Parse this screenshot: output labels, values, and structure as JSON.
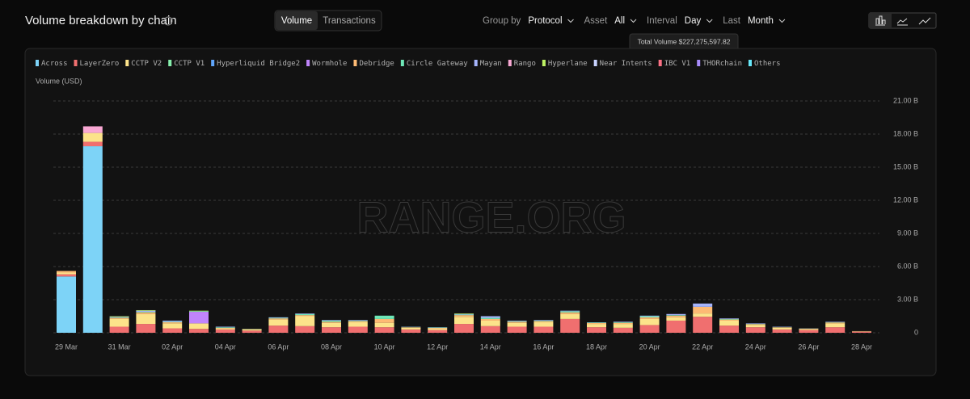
{
  "ui": {
    "title": "Volume breakdown by chain",
    "tabs": [
      "Volume",
      "Transactions"
    ],
    "filters": [
      {
        "label": "Group by",
        "value": "Protocol"
      },
      {
        "label": "Asset",
        "value": "All"
      },
      {
        "label": "Interval",
        "value": "Day"
      },
      {
        "label": "Last",
        "value": "Month"
      }
    ],
    "tooltip": "Total Volume $227,275,597.82",
    "watermark": "RANGE.ORG"
  },
  "chart_data": {
    "type": "stacked_bar",
    "ylabel": "Volume (USD)",
    "categories": [
      "29 Mar",
      null,
      "31 Mar",
      null,
      "02 Apr",
      null,
      "04 Apr",
      null,
      "06 Apr",
      null,
      "08 Apr",
      null,
      "10 Apr",
      null,
      "12 Apr",
      null,
      "14 Apr",
      null,
      "16 Apr",
      null,
      "18 Apr",
      null,
      "20 Apr",
      null,
      "22 Apr",
      null,
      "24 Apr",
      null,
      "26 Apr",
      null,
      "28 Apr"
    ],
    "ylim": [
      0,
      21
    ],
    "yticks": [
      0,
      {
        "value": 3,
        "label": "3.00 B"
      },
      {
        "value": 6,
        "label": "6.00 B"
      },
      {
        "value": 9,
        "label": "9.00 B"
      },
      {
        "value": 12,
        "label": "12.00 B"
      },
      {
        "value": 15,
        "label": "15.00 B"
      },
      {
        "value": 18,
        "label": "18.00 B"
      },
      {
        "value": 21,
        "label": "21.00 B"
      }
    ],
    "grid": true,
    "legend": "top",
    "series": [
      {
        "name": "Across",
        "color": "#7dd3f7",
        "values": [
          5.1,
          16.9,
          0,
          0,
          0,
          0,
          0,
          0,
          0,
          0,
          0,
          0,
          0,
          0,
          0,
          0,
          0,
          0,
          0,
          0,
          0,
          0,
          0,
          0,
          0,
          0,
          0,
          0,
          0,
          0,
          0
        ]
      },
      {
        "name": "LayerZero",
        "color": "#f06f6f",
        "values": [
          0.2,
          0.4,
          0.55,
          0.8,
          0.4,
          0.35,
          0.3,
          0.2,
          0.65,
          0.6,
          0.5,
          0.55,
          0.5,
          0.3,
          0.25,
          0.8,
          0.6,
          0.55,
          0.55,
          1.25,
          0.5,
          0.45,
          0.7,
          1.1,
          1.45,
          0.65,
          0.5,
          0.3,
          0.25,
          0.5,
          0.1
        ]
      },
      {
        "name": "CCTP V2",
        "color": "#fce38a",
        "values": [
          0.15,
          0.8,
          0.7,
          0.9,
          0.45,
          0.5,
          0.1,
          0.1,
          0.55,
          0.9,
          0.4,
          0.4,
          0.4,
          0.15,
          0.15,
          0.65,
          0.5,
          0.35,
          0.4,
          0.45,
          0.3,
          0.35,
          0.55,
          0.3,
          0.3,
          0.45,
          0.2,
          0.15,
          0.1,
          0.35,
          0.03
        ]
      },
      {
        "name": "CCTP V1",
        "color": "#86efac",
        "values": [
          0,
          0,
          0,
          0,
          0,
          0,
          0,
          0,
          0,
          0,
          0,
          0,
          0,
          0,
          0,
          0,
          0,
          0,
          0,
          0,
          0,
          0,
          0,
          0,
          0,
          0,
          0,
          0,
          0,
          0,
          0
        ]
      },
      {
        "name": "Hyperliquid Bridge2",
        "color": "#60a5fa",
        "values": [
          0,
          0,
          0,
          0,
          0,
          0,
          0,
          0,
          0,
          0,
          0,
          0,
          0,
          0,
          0,
          0,
          0,
          0,
          0,
          0,
          0,
          0,
          0,
          0,
          0,
          0,
          0,
          0,
          0,
          0,
          0
        ]
      },
      {
        "name": "Wormhole",
        "color": "#c084fc",
        "values": [
          0,
          0,
          0,
          0,
          0,
          1.05,
          0,
          0,
          0,
          0,
          0,
          0,
          0,
          0,
          0,
          0,
          0,
          0,
          0,
          0,
          0,
          0,
          0,
          0,
          0,
          0,
          0,
          0,
          0,
          0,
          0
        ]
      },
      {
        "name": "Debridge",
        "color": "#fdba74",
        "values": [
          0.15,
          0,
          0.1,
          0.15,
          0.1,
          0,
          0.05,
          0.03,
          0.1,
          0.1,
          0.1,
          0.1,
          0.35,
          0.05,
          0.05,
          0.15,
          0.15,
          0.1,
          0.1,
          0.15,
          0.08,
          0.1,
          0.15,
          0.15,
          0.6,
          0.1,
          0.08,
          0.05,
          0.03,
          0.08,
          0.02
        ]
      },
      {
        "name": "Circle Gateway",
        "color": "#6ee7b7",
        "values": [
          0,
          0,
          0.05,
          0.05,
          0.05,
          0.05,
          0.05,
          0.02,
          0.05,
          0.1,
          0.1,
          0.05,
          0.3,
          0.03,
          0.03,
          0.05,
          0.1,
          0.05,
          0.05,
          0.1,
          0.05,
          0.05,
          0.1,
          0.05,
          0,
          0.05,
          0.03,
          0.02,
          0.01,
          0.03,
          0
        ]
      },
      {
        "name": "Mayan",
        "color": "#a5b4fc",
        "values": [
          0,
          0,
          0.05,
          0.1,
          0.1,
          0,
          0.05,
          0,
          0.05,
          0.05,
          0.05,
          0.05,
          0,
          0.02,
          0.02,
          0.05,
          0.15,
          0.05,
          0.05,
          0.05,
          0.02,
          0.05,
          0.05,
          0.1,
          0.3,
          0.05,
          0.04,
          0.03,
          0.01,
          0.04,
          0
        ]
      },
      {
        "name": "Rango",
        "color": "#f9a8d4",
        "values": [
          0,
          0.6,
          0,
          0,
          0,
          0,
          0,
          0,
          0,
          0,
          0,
          0,
          0,
          0,
          0,
          0,
          0,
          0,
          0,
          0,
          0,
          0,
          0,
          0,
          0,
          0,
          0,
          0,
          0,
          0,
          0
        ]
      },
      {
        "name": "Hyperlane",
        "color": "#bef264",
        "values": [
          0,
          0,
          0.05,
          0.05,
          0,
          0.05,
          0,
          0,
          0,
          0,
          0,
          0,
          0,
          0,
          0,
          0.05,
          0,
          0,
          0,
          0,
          0,
          0,
          0,
          0,
          0,
          0,
          0,
          0,
          0,
          0,
          0
        ]
      },
      {
        "name": "Near Intents",
        "color": "#c7d2fe",
        "values": [
          0,
          0,
          0,
          0,
          0,
          0,
          0,
          0,
          0,
          0,
          0,
          0,
          0,
          0,
          0,
          0,
          0,
          0,
          0,
          0,
          0,
          0,
          0,
          0,
          0,
          0,
          0,
          0,
          0,
          0,
          0
        ]
      },
      {
        "name": "IBC V1",
        "color": "#fb7185",
        "values": [
          0,
          0,
          0,
          0,
          0,
          0,
          0,
          0,
          0,
          0,
          0,
          0,
          0,
          0,
          0,
          0,
          0,
          0,
          0,
          0,
          0,
          0,
          0,
          0,
          0,
          0,
          0,
          0,
          0,
          0,
          0
        ]
      },
      {
        "name": "THORchain",
        "color": "#a78bfa",
        "values": [
          0,
          0,
          0,
          0,
          0,
          0,
          0,
          0,
          0,
          0,
          0,
          0,
          0,
          0,
          0,
          0,
          0,
          0,
          0,
          0,
          0,
          0,
          0,
          0,
          0,
          0,
          0,
          0,
          0,
          0,
          0
        ]
      },
      {
        "name": "Others",
        "color": "#67e8f9",
        "values": [
          0,
          0,
          0,
          0,
          0,
          0,
          0,
          0,
          0,
          0,
          0,
          0,
          0,
          0,
          0,
          0,
          0,
          0,
          0,
          0,
          0,
          0,
          0,
          0,
          0,
          0,
          0,
          0,
          0,
          0,
          0
        ]
      }
    ]
  }
}
